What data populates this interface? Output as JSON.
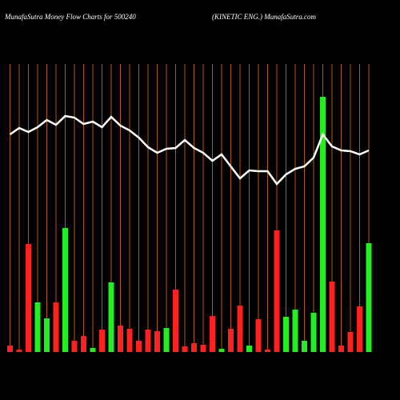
{
  "chart_data": {
    "type": "bar",
    "title": "MunafaSutra  Money Flow  Charts for 500240",
    "subtitle": "(KINETIC ENG.) MunafaSutra.com",
    "ylim": [
      0,
      420
    ],
    "grid_color": "#b35900",
    "series": [
      {
        "type": "bar",
        "values": [
          8,
          3,
          135,
          62,
          42,
          62,
          155,
          14,
          20,
          5,
          28,
          87,
          33,
          29,
          14,
          28,
          26,
          30,
          78,
          7,
          11,
          9,
          45,
          4,
          29,
          58,
          8,
          41,
          3,
          152,
          44,
          53,
          14,
          49,
          319,
          88,
          8,
          25,
          57,
          136
        ],
        "colors": [
          "#ff2020",
          "#ff2020",
          "#ff2020",
          "#22ee22",
          "#22ee22",
          "#ff2020",
          "#22ee22",
          "#ff2020",
          "#ff2020",
          "#22ee22",
          "#ff2020",
          "#22ee22",
          "#ff2020",
          "#ff2020",
          "#ff2020",
          "#ff2020",
          "#ff2020",
          "#22ee22",
          "#ff2020",
          "#ff2020",
          "#ff2020",
          "#ff2020",
          "#ff2020",
          "#22ee22",
          "#ff2020",
          "#ff2020",
          "#22ee22",
          "#ff2020",
          "#ff2020",
          "#ff2020",
          "#22ee22",
          "#22ee22",
          "#22ee22",
          "#22ee22",
          "#22ee22",
          "#ff2020",
          "#ff2020",
          "#ff2020",
          "#ff2020",
          "#22ee22"
        ]
      },
      {
        "type": "line",
        "color": "#ffffff",
        "values": [
          272,
          280,
          275,
          281,
          290,
          284,
          295,
          293,
          285,
          288,
          281,
          294,
          283,
          277,
          268,
          256,
          249,
          254,
          255,
          265,
          255,
          249,
          239,
          247,
          232,
          217,
          227,
          226,
          226,
          210,
          222,
          229,
          232,
          243,
          272,
          257,
          252,
          251,
          247,
          252
        ]
      }
    ]
  }
}
